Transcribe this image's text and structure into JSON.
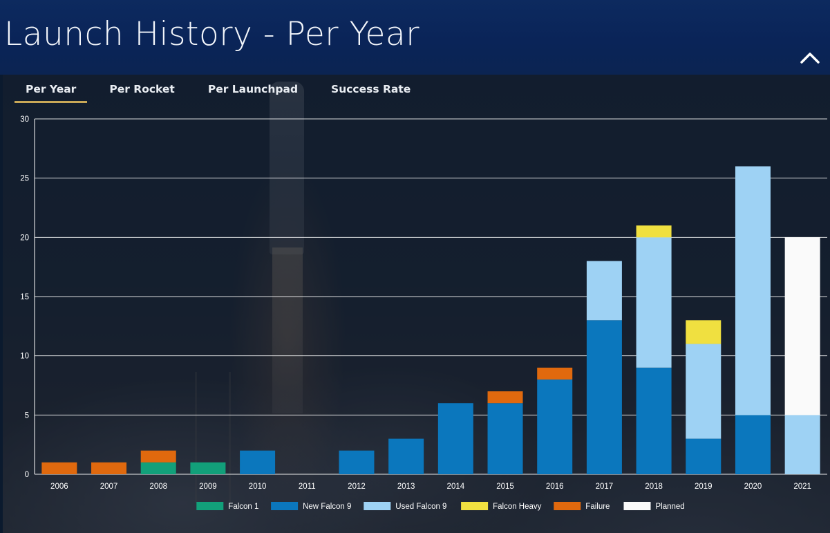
{
  "page": {
    "title": "Launch History - Per Year"
  },
  "tabs": [
    {
      "label": "Per Year",
      "active": true
    },
    {
      "label": "Per Rocket",
      "active": false
    },
    {
      "label": "Per Launchpad",
      "active": false
    },
    {
      "label": "Success Rate",
      "active": false
    }
  ],
  "icons": {
    "collapse": "chevron-up-icon"
  },
  "colors": {
    "accent": "#c8a857"
  },
  "chart_data": {
    "type": "bar",
    "stacked": true,
    "categories": [
      "2006",
      "2007",
      "2008",
      "2009",
      "2010",
      "2011",
      "2012",
      "2013",
      "2014",
      "2015",
      "2016",
      "2017",
      "2018",
      "2019",
      "2020",
      "2021"
    ],
    "series": [
      {
        "name": "Falcon 1",
        "color": "#12a07a",
        "values": [
          0,
          0,
          1,
          1,
          0,
          0,
          0,
          0,
          0,
          0,
          0,
          0,
          0,
          0,
          0,
          0
        ]
      },
      {
        "name": "New Falcon 9",
        "color": "#0b77bd",
        "values": [
          0,
          0,
          0,
          0,
          2,
          0,
          2,
          3,
          6,
          6,
          8,
          13,
          9,
          3,
          5,
          0
        ]
      },
      {
        "name": "Used Falcon 9",
        "color": "#9ed2f4",
        "values": [
          0,
          0,
          0,
          0,
          0,
          0,
          0,
          0,
          0,
          0,
          0,
          5,
          11,
          8,
          21,
          5
        ]
      },
      {
        "name": "Falcon Heavy",
        "color": "#f0e040",
        "values": [
          0,
          0,
          0,
          0,
          0,
          0,
          0,
          0,
          0,
          0,
          0,
          0,
          1,
          2,
          0,
          0
        ]
      },
      {
        "name": "Failure",
        "color": "#e0690e",
        "values": [
          1,
          1,
          1,
          0,
          0,
          0,
          0,
          0,
          0,
          1,
          1,
          0,
          0,
          0,
          0,
          0
        ]
      },
      {
        "name": "Planned",
        "color": "#fafafa",
        "values": [
          0,
          0,
          0,
          0,
          0,
          0,
          0,
          0,
          0,
          0,
          0,
          0,
          0,
          0,
          0,
          15
        ]
      }
    ],
    "ylim": [
      0,
      30
    ],
    "yticks": [
      0,
      5,
      10,
      15,
      20,
      25,
      30
    ],
    "grid": true,
    "legend": "bottom"
  }
}
